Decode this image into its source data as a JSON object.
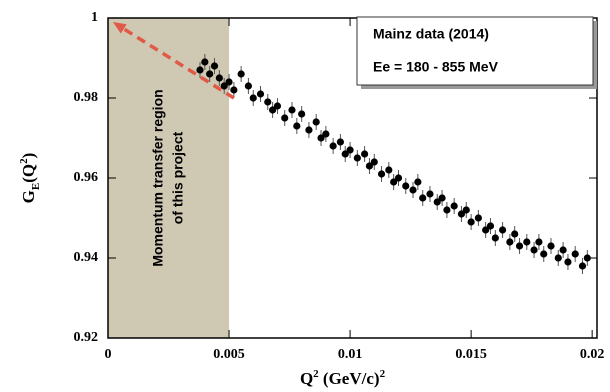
{
  "chart_data": {
    "type": "scatter",
    "legend_lines": [
      "Mainz data (2014)",
      "Ee = 180 - 855 MeV"
    ],
    "region_text": [
      "Momentum transfer region",
      "of this project"
    ],
    "region": [
      0,
      0.005
    ],
    "region_color": "#cfc8b2",
    "arrow": {
      "x": [
        0.0052,
        0.0002
      ],
      "y": [
        0.98,
        0.999
      ],
      "color": "#e05a47"
    },
    "xlabel": [
      "Q",
      "2",
      " (GeV/c)",
      "2"
    ],
    "ylabel": [
      "G",
      "E",
      "(Q",
      "2",
      ")"
    ],
    "xlim": [
      0,
      0.0202
    ],
    "ylim": [
      0.92,
      1
    ],
    "xticks": [
      0,
      0.005,
      0.01,
      0.015,
      0.02
    ],
    "yticks": [
      0.92,
      0.94,
      0.96,
      0.98,
      1
    ],
    "color": "#000000",
    "x": [
      0.0038,
      0.004,
      0.0042,
      0.0044,
      0.0046,
      0.0048,
      0.005,
      0.0052,
      0.0055,
      0.0058,
      0.006,
      0.0063,
      0.0066,
      0.0068,
      0.007,
      0.0073,
      0.0076,
      0.0078,
      0.008,
      0.0083,
      0.0086,
      0.0088,
      0.009,
      0.0093,
      0.0096,
      0.0098,
      0.01,
      0.0103,
      0.0106,
      0.0108,
      0.011,
      0.0113,
      0.0116,
      0.0118,
      0.012,
      0.0123,
      0.0126,
      0.0128,
      0.013,
      0.0133,
      0.0136,
      0.0138,
      0.014,
      0.0143,
      0.0146,
      0.0148,
      0.015,
      0.0153,
      0.0156,
      0.0158,
      0.016,
      0.0163,
      0.0166,
      0.0168,
      0.017,
      0.0173,
      0.0176,
      0.0178,
      0.018,
      0.0183,
      0.0186,
      0.0188,
      0.019,
      0.0193,
      0.0196,
      0.0198
    ],
    "values": [
      0.987,
      0.989,
      0.986,
      0.988,
      0.985,
      0.983,
      0.984,
      0.982,
      0.986,
      0.983,
      0.98,
      0.981,
      0.979,
      0.977,
      0.978,
      0.975,
      0.977,
      0.973,
      0.976,
      0.972,
      0.974,
      0.97,
      0.971,
      0.968,
      0.969,
      0.966,
      0.967,
      0.965,
      0.966,
      0.963,
      0.964,
      0.961,
      0.962,
      0.959,
      0.96,
      0.958,
      0.957,
      0.959,
      0.955,
      0.956,
      0.954,
      0.955,
      0.952,
      0.953,
      0.951,
      0.952,
      0.949,
      0.95,
      0.947,
      0.948,
      0.945,
      0.947,
      0.944,
      0.946,
      0.943,
      0.944,
      0.942,
      0.944,
      0.941,
      0.943,
      0.94,
      0.942,
      0.939,
      0.941,
      0.938,
      0.94
    ],
    "errors": [
      0.002,
      0.002,
      0.002,
      0.002,
      0.002,
      0.002,
      0.002,
      0.002,
      0.002,
      0.002,
      0.002,
      0.002,
      0.002,
      0.002,
      0.002,
      0.002,
      0.002,
      0.002,
      0.002,
      0.002,
      0.002,
      0.002,
      0.002,
      0.002,
      0.002,
      0.002,
      0.002,
      0.002,
      0.002,
      0.002,
      0.002,
      0.002,
      0.002,
      0.002,
      0.002,
      0.002,
      0.002,
      0.002,
      0.002,
      0.002,
      0.002,
      0.002,
      0.002,
      0.002,
      0.002,
      0.002,
      0.002,
      0.002,
      0.002,
      0.002,
      0.002,
      0.002,
      0.002,
      0.002,
      0.002,
      0.002,
      0.002,
      0.002,
      0.002,
      0.002,
      0.002,
      0.002,
      0.002,
      0.002,
      0.002,
      0.002
    ]
  }
}
